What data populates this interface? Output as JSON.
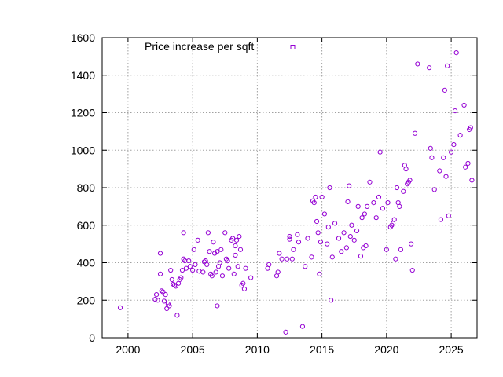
{
  "chart_data": {
    "type": "scatter",
    "title": "",
    "xlabel": "",
    "ylabel": "",
    "xlim": [
      1998,
      2027
    ],
    "ylim": [
      0,
      1600
    ],
    "xticks": [
      2000,
      2005,
      2010,
      2015,
      2020,
      2025
    ],
    "yticks": [
      0,
      200,
      400,
      600,
      800,
      1000,
      1200,
      1400,
      1600
    ],
    "grid": true,
    "legend_position": "top-left",
    "series": [
      {
        "name": "Price increase per sqft",
        "color": "#9400d3",
        "marker": "open-circle",
        "points": [
          [
            1999.4,
            160
          ],
          [
            2002.1,
            205
          ],
          [
            2002.2,
            230
          ],
          [
            2002.3,
            200
          ],
          [
            2002.5,
            340
          ],
          [
            2002.5,
            450
          ],
          [
            2002.6,
            250
          ],
          [
            2002.7,
            245
          ],
          [
            2002.8,
            195
          ],
          [
            2002.9,
            230
          ],
          [
            2003.0,
            155
          ],
          [
            2003.1,
            180
          ],
          [
            2003.2,
            170
          ],
          [
            2003.3,
            360
          ],
          [
            2003.4,
            310
          ],
          [
            2003.5,
            285
          ],
          [
            2003.6,
            280
          ],
          [
            2003.7,
            275
          ],
          [
            2003.8,
            120
          ],
          [
            2003.9,
            290
          ],
          [
            2004.0,
            310
          ],
          [
            2004.1,
            320
          ],
          [
            2004.2,
            360
          ],
          [
            2004.3,
            420
          ],
          [
            2004.3,
            560
          ],
          [
            2004.4,
            410
          ],
          [
            2004.5,
            370
          ],
          [
            2004.7,
            410
          ],
          [
            2004.8,
            380
          ],
          [
            2005.0,
            360
          ],
          [
            2005.1,
            470
          ],
          [
            2005.2,
            390
          ],
          [
            2005.4,
            520
          ],
          [
            2005.5,
            355
          ],
          [
            2005.8,
            350
          ],
          [
            2005.9,
            405
          ],
          [
            2006.0,
            410
          ],
          [
            2006.1,
            390
          ],
          [
            2006.2,
            560
          ],
          [
            2006.3,
            460
          ],
          [
            2006.4,
            340
          ],
          [
            2006.5,
            330
          ],
          [
            2006.6,
            510
          ],
          [
            2006.7,
            450
          ],
          [
            2006.8,
            350
          ],
          [
            2006.9,
            460
          ],
          [
            2006.9,
            170
          ],
          [
            2007.0,
            380
          ],
          [
            2007.1,
            400
          ],
          [
            2007.2,
            470
          ],
          [
            2007.3,
            330
          ],
          [
            2007.5,
            560
          ],
          [
            2007.6,
            420
          ],
          [
            2007.7,
            410
          ],
          [
            2007.8,
            370
          ],
          [
            2008.0,
            520
          ],
          [
            2008.1,
            530
          ],
          [
            2008.2,
            340
          ],
          [
            2008.3,
            490
          ],
          [
            2008.3,
            440
          ],
          [
            2008.4,
            520
          ],
          [
            2008.5,
            380
          ],
          [
            2008.6,
            540
          ],
          [
            2008.7,
            470
          ],
          [
            2008.8,
            280
          ],
          [
            2008.9,
            290
          ],
          [
            2009.0,
            260
          ],
          [
            2009.1,
            370
          ],
          [
            2009.5,
            320
          ],
          [
            2010.8,
            370
          ],
          [
            2010.9,
            390
          ],
          [
            2011.5,
            330
          ],
          [
            2011.6,
            350
          ],
          [
            2011.7,
            450
          ],
          [
            2011.9,
            420
          ],
          [
            2012.2,
            30
          ],
          [
            2012.3,
            420
          ],
          [
            2012.5,
            540
          ],
          [
            2012.5,
            525
          ],
          [
            2012.7,
            420
          ],
          [
            2012.8,
            470
          ],
          [
            2013.1,
            550
          ],
          [
            2013.2,
            510
          ],
          [
            2013.5,
            60
          ],
          [
            2013.7,
            380
          ],
          [
            2013.9,
            530
          ],
          [
            2014.2,
            430
          ],
          [
            2014.3,
            730
          ],
          [
            2014.4,
            720
          ],
          [
            2014.5,
            750
          ],
          [
            2014.6,
            620
          ],
          [
            2014.7,
            560
          ],
          [
            2014.8,
            340
          ],
          [
            2014.9,
            510
          ],
          [
            2015.0,
            750
          ],
          [
            2015.2,
            660
          ],
          [
            2015.4,
            500
          ],
          [
            2015.5,
            590
          ],
          [
            2015.6,
            800
          ],
          [
            2015.7,
            200
          ],
          [
            2015.8,
            430
          ],
          [
            2016.0,
            610
          ],
          [
            2016.3,
            530
          ],
          [
            2016.5,
            460
          ],
          [
            2016.7,
            560
          ],
          [
            2016.9,
            480
          ],
          [
            2017.0,
            725
          ],
          [
            2017.1,
            810
          ],
          [
            2017.2,
            540
          ],
          [
            2017.3,
            600
          ],
          [
            2017.5,
            520
          ],
          [
            2017.7,
            570
          ],
          [
            2017.8,
            700
          ],
          [
            2018.0,
            435
          ],
          [
            2018.1,
            640
          ],
          [
            2018.2,
            480
          ],
          [
            2018.3,
            660
          ],
          [
            2018.4,
            490
          ],
          [
            2018.5,
            700
          ],
          [
            2018.7,
            830
          ],
          [
            2019.0,
            720
          ],
          [
            2019.2,
            640
          ],
          [
            2019.4,
            750
          ],
          [
            2019.5,
            990
          ],
          [
            2019.7,
            690
          ],
          [
            2020.0,
            470
          ],
          [
            2020.1,
            720
          ],
          [
            2020.3,
            590
          ],
          [
            2020.4,
            600
          ],
          [
            2020.5,
            610
          ],
          [
            2020.6,
            630
          ],
          [
            2020.7,
            420
          ],
          [
            2020.8,
            800
          ],
          [
            2020.9,
            720
          ],
          [
            2021.0,
            700
          ],
          [
            2021.1,
            470
          ],
          [
            2021.3,
            780
          ],
          [
            2021.4,
            920
          ],
          [
            2021.5,
            900
          ],
          [
            2021.6,
            820
          ],
          [
            2021.7,
            830
          ],
          [
            2021.8,
            840
          ],
          [
            2021.9,
            500
          ],
          [
            2022.0,
            360
          ],
          [
            2022.2,
            1090
          ],
          [
            2022.4,
            1460
          ],
          [
            2023.3,
            1440
          ],
          [
            2023.4,
            1010
          ],
          [
            2023.5,
            960
          ],
          [
            2023.7,
            790
          ],
          [
            2024.1,
            890
          ],
          [
            2024.2,
            630
          ],
          [
            2024.4,
            960
          ],
          [
            2024.5,
            1320
          ],
          [
            2024.6,
            860
          ],
          [
            2024.7,
            1450
          ],
          [
            2024.8,
            650
          ],
          [
            2025.0,
            990
          ],
          [
            2025.2,
            1030
          ],
          [
            2025.3,
            1210
          ],
          [
            2025.4,
            1520
          ],
          [
            2025.7,
            1080
          ],
          [
            2026.0,
            1240
          ],
          [
            2026.1,
            910
          ],
          [
            2026.3,
            930
          ],
          [
            2026.4,
            1110
          ],
          [
            2026.5,
            1120
          ],
          [
            2026.6,
            840
          ]
        ]
      }
    ]
  }
}
